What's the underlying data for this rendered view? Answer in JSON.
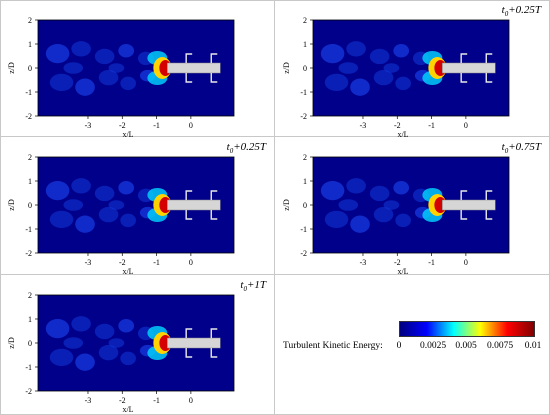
{
  "panels": [
    {
      "id": "p1",
      "title_prefix": "",
      "title_sub": "",
      "title_suffix": "",
      "xlabel": "x/L",
      "ylabel": "z/D"
    },
    {
      "id": "p2",
      "title_prefix": "t",
      "title_sub": "0",
      "title_suffix": "+0.25T",
      "xlabel": "x/L",
      "ylabel": "z/D"
    },
    {
      "id": "p3",
      "title_prefix": "t",
      "title_sub": "0",
      "title_suffix": "+0.25T",
      "xlabel": "x/L",
      "ylabel": "z/D"
    },
    {
      "id": "p4",
      "title_prefix": "t",
      "title_sub": "0",
      "title_suffix": "+0.75T",
      "xlabel": "x/L",
      "ylabel": "z/D"
    },
    {
      "id": "p5",
      "title_prefix": "t",
      "title_sub": "0",
      "title_suffix": "+1T",
      "xlabel": "x/L",
      "ylabel": "z/D"
    }
  ],
  "axes": {
    "y_ticks": [
      "2",
      "1",
      "0",
      "-1",
      "-2"
    ],
    "x_ticks": [
      "-3",
      "-2",
      "-1",
      "0"
    ]
  },
  "colorbar": {
    "label": "Turbulent Kinetic Energy:",
    "ticks": [
      "0",
      "0.0025",
      "0.005",
      "0.0075",
      "0.01"
    ],
    "range": [
      0,
      0.01
    ],
    "colors": [
      "#000080",
      "#0000ff",
      "#00ffff",
      "#ffff00",
      "#ff0000",
      "#800000"
    ]
  }
}
